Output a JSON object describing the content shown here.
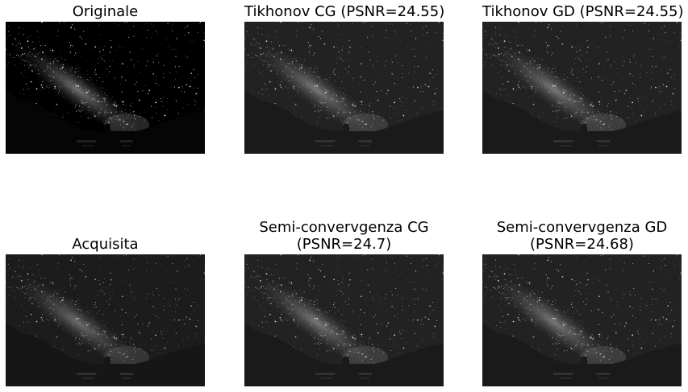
{
  "panels": [
    {
      "title": [
        "Originale"
      ],
      "variant": "original"
    },
    {
      "title": [
        "Tikhonov CG (PSNR=24.55)"
      ],
      "variant": "restored"
    },
    {
      "title": [
        "Tikhonov GD (PSNR=24.55)"
      ],
      "variant": "restored"
    },
    {
      "title": [
        "Acquisita"
      ],
      "variant": "blurred"
    },
    {
      "title": [
        "Semi-convervgenza CG",
        "(PSNR=24.7)"
      ],
      "variant": "restored"
    },
    {
      "title": [
        "Semi-convervgenza GD",
        "(PSNR=24.68)"
      ],
      "variant": "restored"
    }
  ]
}
